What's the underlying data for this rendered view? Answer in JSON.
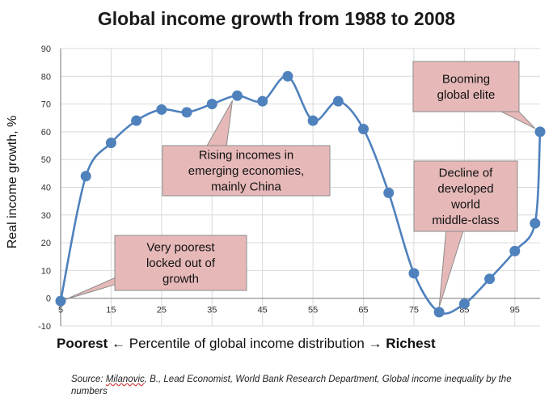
{
  "chart_data": {
    "type": "line",
    "title": "Global income growth from 1988 to 2008",
    "ylabel": "Real income growth, %",
    "xlabel": {
      "left": "Poorest",
      "arrow_left": "←",
      "middle": "Percentile of global income distribution",
      "arrow_right": "→",
      "right": "Richest"
    },
    "xlim": [
      5,
      100
    ],
    "ylim": [
      -10,
      90
    ],
    "x_ticks": [
      5,
      15,
      25,
      35,
      45,
      55,
      65,
      75,
      85,
      95
    ],
    "y_ticks": [
      -10,
      0,
      10,
      20,
      30,
      40,
      50,
      60,
      70,
      80,
      90
    ],
    "grid": true,
    "series": [
      {
        "name": "Real income growth",
        "color": "#4f81bd",
        "x": [
          5,
          10,
          15,
          20,
          25,
          30,
          35,
          40,
          45,
          50,
          55,
          60,
          65,
          70,
          75,
          80,
          85,
          90,
          95,
          99,
          100
        ],
        "y": [
          -1,
          44,
          56,
          64,
          68,
          67,
          70,
          73,
          71,
          80,
          64,
          71,
          61,
          38,
          9,
          -5,
          -2,
          7,
          17,
          27,
          60
        ]
      }
    ],
    "annotations": [
      {
        "id": "poorest",
        "lines": [
          "Very poorest",
          "locked out of",
          "growth"
        ]
      },
      {
        "id": "rising",
        "lines": [
          "Rising incomes in",
          "emerging economies,",
          "mainly China"
        ]
      },
      {
        "id": "decline",
        "lines": [
          "Decline of",
          "developed",
          "world",
          "middle-class"
        ]
      },
      {
        "id": "elite",
        "lines": [
          "Booming",
          "global elite"
        ]
      }
    ],
    "source": {
      "prefix": "Source: ",
      "author": "Milanovic",
      "rest": ", B., Lead Economist, World Bank Research Department, Global income inequality by the numbers"
    }
  },
  "colors": {
    "line": "#4f81bd",
    "callout_fill": "#e6b9b8",
    "callout_stroke": "#8c8c8c",
    "grid": "#d9d9d9"
  }
}
